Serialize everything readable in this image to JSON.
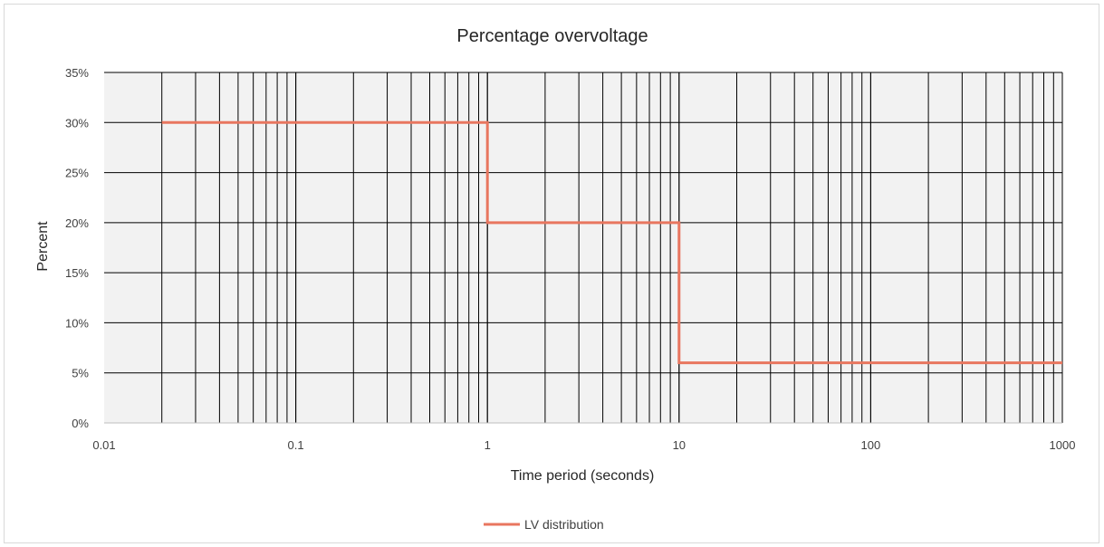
{
  "chart_data": {
    "type": "line",
    "title": "Percentage overvoltage",
    "xlabel": "Time period (seconds)",
    "ylabel": "Percent",
    "xscale": "log",
    "xlim": [
      0.01,
      1000
    ],
    "ylim": [
      0,
      0.35
    ],
    "x_ticks": [
      "0.01",
      "0.1",
      "1",
      "10",
      "100",
      "1000"
    ],
    "y_ticks": [
      "0%",
      "5%",
      "10%",
      "15%",
      "20%",
      "25%",
      "30%",
      "35%"
    ],
    "grid": "on",
    "legend_position": "bottom",
    "plot_background": "#f2f2f2",
    "grid_color": "#000000",
    "series": [
      {
        "name": "LV distribution",
        "color": "#e8765f",
        "points": [
          [
            0.02,
            0.3
          ],
          [
            1,
            0.3
          ],
          [
            1,
            0.2
          ],
          [
            10,
            0.2
          ],
          [
            10,
            0.06
          ],
          [
            1000,
            0.06
          ]
        ]
      }
    ]
  }
}
